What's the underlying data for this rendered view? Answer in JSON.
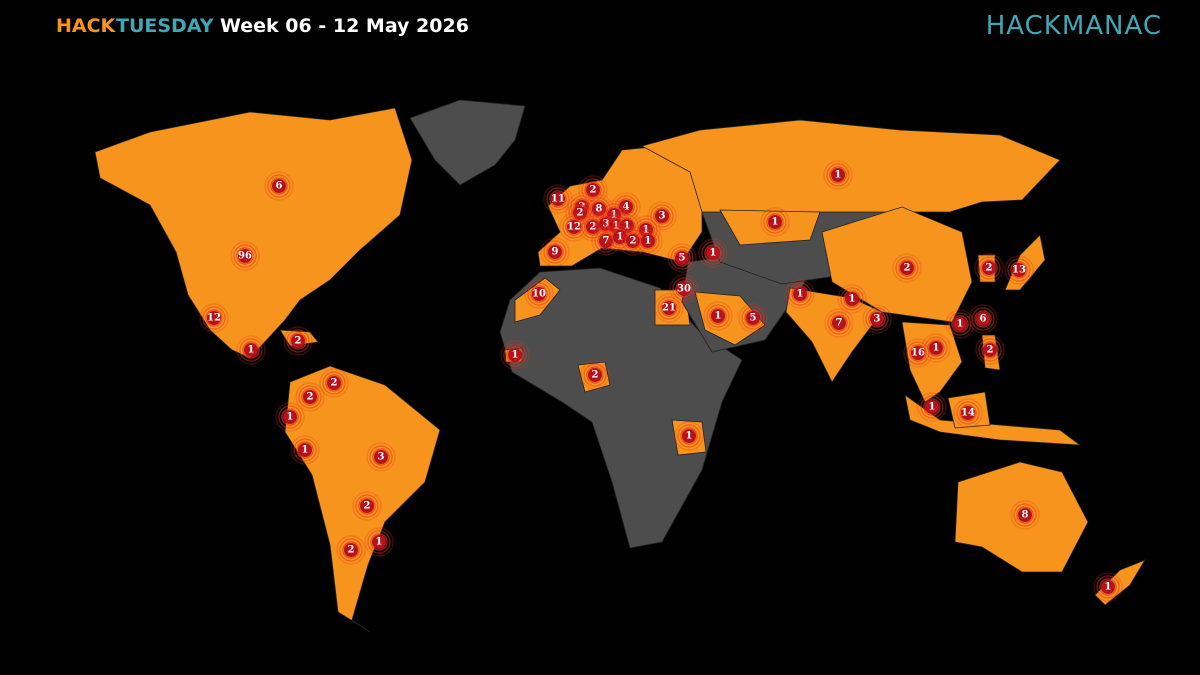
{
  "header": {
    "brand_left": "HACK",
    "brand_right": "TUESDAY",
    "week": "Week 06 - 12 May 2026"
  },
  "logo": "HACKMANAC",
  "markers": [
    6,
    96,
    12,
    1,
    2,
    2,
    2,
    1,
    1,
    3,
    2,
    2,
    1,
    11,
    2,
    2,
    2,
    8,
    4,
    1,
    3,
    12,
    2,
    3,
    1,
    1,
    1,
    7,
    1,
    2,
    1,
    9,
    5,
    1,
    10,
    21,
    30,
    1,
    5,
    1,
    1,
    7,
    3,
    1,
    2,
    1,
    1,
    1,
    2,
    2,
    13,
    6,
    1,
    16,
    1,
    2,
    1,
    14,
    8,
    1
  ]
}
